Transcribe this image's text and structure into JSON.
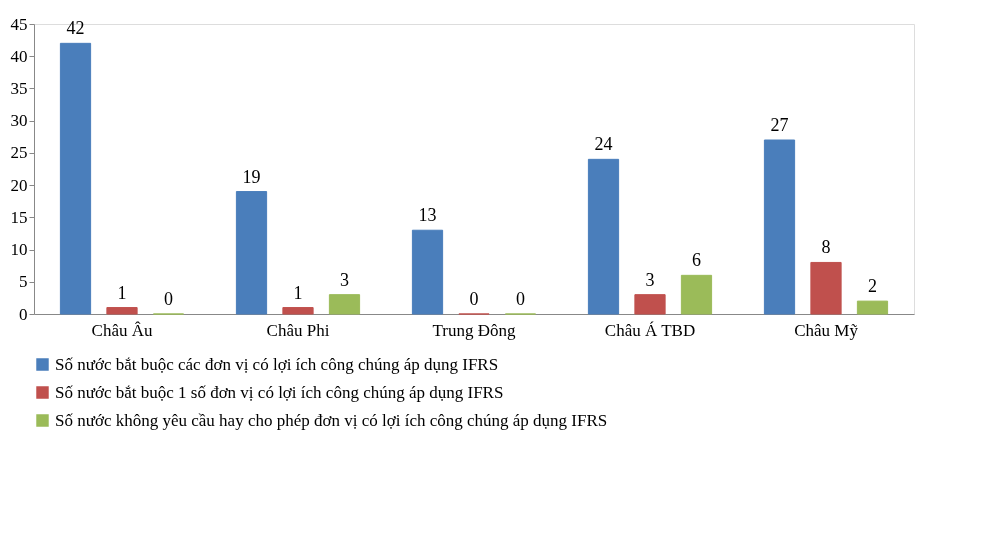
{
  "chart_data": {
    "type": "bar",
    "categories": [
      "Châu Âu",
      "Châu Phi",
      "Trung Đông",
      "Châu Á TBD",
      "Châu Mỹ"
    ],
    "series": [
      {
        "name": "Số nước bắt buộc các đơn vị có lợi ích công chúng áp dụng IFRS",
        "color": "#4a7ebb",
        "values": [
          42,
          19,
          13,
          24,
          27
        ]
      },
      {
        "name": "Số nước bắt buộc 1 số đơn vị có lợi ích công chúng áp dụng IFRS",
        "color": "#c0504d",
        "values": [
          1,
          1,
          0,
          3,
          8
        ]
      },
      {
        "name": "Số nước không yêu cầu hay cho phép đơn vị có lợi ích công chúng áp dụng IFRS",
        "color": "#9bbb59",
        "values": [
          0,
          3,
          0,
          6,
          2
        ]
      }
    ],
    "ylim": [
      0,
      45
    ],
    "yticks": [
      0,
      5,
      10,
      15,
      20,
      25,
      30,
      35,
      40,
      45
    ],
    "grid": false,
    "legend": "bottom",
    "data_labels": true
  }
}
